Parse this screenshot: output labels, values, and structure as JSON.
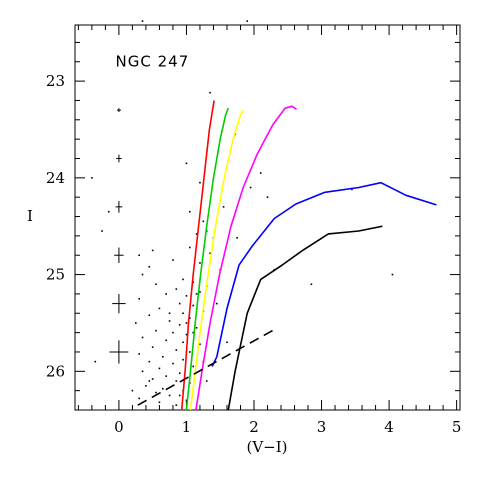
{
  "chart_data": {
    "type": "scatter",
    "title": "",
    "xlabel": "(V−I)",
    "ylabel": "I",
    "xlim": [
      -0.65,
      5.05
    ],
    "ylim": [
      26.4,
      22.42
    ],
    "x_ticks": [
      0,
      1,
      2,
      3,
      4,
      5
    ],
    "y_ticks": [
      23,
      24,
      25,
      26
    ],
    "x_tick_labels": [
      "0",
      "1",
      "2",
      "3",
      "4",
      "5"
    ],
    "y_tick_labels": [
      "23",
      "24",
      "25",
      "26"
    ],
    "annotations": [
      {
        "text": "NGC 247",
        "x": -0.05,
        "y": 22.85
      }
    ],
    "grid": false,
    "colors": {
      "red": "#ff0000",
      "green": "#00cc00",
      "yellow": "#ffff00",
      "magenta": "#ff00ff",
      "blue": "#0000ff",
      "black": "#000000"
    },
    "error_bars": [
      {
        "x": 0,
        "y": 23.3,
        "yerr": 0.02,
        "xerr": 0.03
      },
      {
        "x": 0,
        "y": 23.8,
        "yerr": 0.04,
        "xerr": 0.04
      },
      {
        "x": 0,
        "y": 24.3,
        "yerr": 0.06,
        "xerr": 0.05
      },
      {
        "x": 0,
        "y": 24.8,
        "yerr": 0.08,
        "xerr": 0.07
      },
      {
        "x": 0,
        "y": 25.3,
        "yerr": 0.1,
        "xerr": 0.1
      },
      {
        "x": 0,
        "y": 25.8,
        "yerr": 0.12,
        "xerr": 0.14
      }
    ],
    "series": [
      {
        "color": "#ff0000",
        "style": "solid",
        "x": [
          0.93,
          0.98,
          1.03,
          1.1,
          1.18,
          1.26,
          1.34,
          1.41
        ],
        "y": [
          26.4,
          26.0,
          25.5,
          25.0,
          24.5,
          24.0,
          23.5,
          23.2
        ]
      },
      {
        "color": "#00cc00",
        "style": "solid",
        "x": [
          1.0,
          1.06,
          1.13,
          1.21,
          1.3,
          1.4,
          1.5,
          1.58,
          1.62
        ],
        "y": [
          26.4,
          26.0,
          25.5,
          25.0,
          24.5,
          24.0,
          23.6,
          23.35,
          23.28
        ]
      },
      {
        "color": "#ffff00",
        "style": "solid",
        "x": [
          1.06,
          1.13,
          1.22,
          1.32,
          1.43,
          1.56,
          1.69,
          1.8,
          1.84
        ],
        "y": [
          26.4,
          26.0,
          25.5,
          25.0,
          24.5,
          24.0,
          23.6,
          23.35,
          23.3
        ]
      },
      {
        "color": "#ff00ff",
        "style": "solid",
        "x": [
          1.14,
          1.23,
          1.35,
          1.49,
          1.66,
          1.84,
          2.05,
          2.28,
          2.46,
          2.56,
          2.63
        ],
        "y": [
          26.4,
          26.0,
          25.5,
          25.0,
          24.5,
          24.1,
          23.75,
          23.45,
          23.28,
          23.26,
          23.29
        ]
      },
      {
        "color": "#0000ff",
        "style": "solid",
        "x": [
          1.38,
          1.45,
          1.6,
          1.78,
          1.98,
          2.3,
          2.62,
          3.05,
          3.55,
          3.88,
          4.25,
          4.7
        ],
        "y": [
          25.95,
          25.85,
          25.35,
          24.9,
          24.7,
          24.42,
          24.27,
          24.15,
          24.1,
          24.05,
          24.18,
          24.28
        ]
      },
      {
        "color": "#000000",
        "style": "solid",
        "x": [
          1.62,
          1.72,
          1.9,
          2.1,
          2.42,
          2.72,
          3.1,
          3.55,
          3.9
        ],
        "y": [
          26.4,
          26.0,
          25.4,
          25.05,
          24.9,
          24.75,
          24.58,
          24.55,
          24.5
        ]
      },
      {
        "color": "#000000",
        "style": "dashed",
        "x": [
          0.28,
          2.35
        ],
        "y": [
          26.35,
          25.55
        ]
      }
    ],
    "points": [
      [
        0.35,
        22.38
      ],
      [
        1.9,
        22.38
      ],
      [
        -0.4,
        24.0
      ],
      [
        1.35,
        23.12
      ],
      [
        1.72,
        23.55
      ],
      [
        1.0,
        23.85
      ],
      [
        2.1,
        23.95
      ],
      [
        1.2,
        24.05
      ],
      [
        1.95,
        24.1
      ],
      [
        2.2,
        24.2
      ],
      [
        3.45,
        24.12
      ],
      [
        1.55,
        24.3
      ],
      [
        1.05,
        24.35
      ],
      [
        -0.15,
        24.35
      ],
      [
        1.25,
        24.45
      ],
      [
        -0.25,
        24.55
      ],
      [
        1.15,
        24.58
      ],
      [
        1.4,
        24.62
      ],
      [
        1.75,
        24.62
      ],
      [
        1.05,
        24.72
      ],
      [
        0.5,
        24.75
      ],
      [
        1.35,
        24.78
      ],
      [
        0.3,
        24.8
      ],
      [
        0.8,
        24.85
      ],
      [
        1.2,
        24.88
      ],
      [
        0.45,
        24.92
      ],
      [
        1.5,
        24.95
      ],
      [
        0.35,
        25.0
      ],
      [
        2.3,
        24.95
      ],
      [
        0.95,
        25.05
      ],
      [
        1.1,
        25.08
      ],
      [
        0.55,
        25.1
      ],
      [
        1.3,
        25.12
      ],
      [
        0.85,
        25.15
      ],
      [
        1.2,
        25.18
      ],
      [
        0.7,
        25.2
      ],
      [
        1.0,
        25.22
      ],
      [
        2.85,
        25.1
      ],
      [
        4.05,
        25.0
      ],
      [
        0.3,
        25.25
      ],
      [
        0.9,
        25.3
      ],
      [
        1.1,
        25.32
      ],
      [
        0.6,
        25.35
      ],
      [
        1.25,
        25.38
      ],
      [
        0.95,
        25.4
      ],
      [
        0.45,
        25.42
      ],
      [
        1.05,
        25.45
      ],
      [
        0.75,
        25.48
      ],
      [
        0.25,
        25.5
      ],
      [
        0.9,
        25.52
      ],
      [
        1.15,
        25.55
      ],
      [
        0.55,
        25.58
      ],
      [
        0.8,
        25.6
      ],
      [
        1.0,
        25.62
      ],
      [
        0.35,
        25.65
      ],
      [
        0.7,
        25.68
      ],
      [
        0.95,
        25.7
      ],
      [
        1.2,
        25.72
      ],
      [
        0.5,
        25.75
      ],
      [
        0.85,
        25.78
      ],
      [
        1.05,
        25.8
      ],
      [
        0.3,
        25.82
      ],
      [
        0.65,
        25.85
      ],
      [
        0.95,
        25.88
      ],
      [
        0.45,
        25.9
      ],
      [
        0.8,
        25.92
      ],
      [
        1.1,
        25.95
      ],
      [
        0.6,
        25.97
      ],
      [
        0.35,
        26.0
      ],
      [
        0.9,
        26.02
      ],
      [
        0.7,
        26.05
      ],
      [
        0.5,
        26.08
      ],
      [
        0.85,
        26.1
      ],
      [
        1.05,
        26.12
      ],
      [
        0.4,
        26.15
      ],
      [
        0.65,
        26.18
      ],
      [
        0.95,
        26.2
      ],
      [
        0.55,
        26.22
      ],
      [
        0.75,
        26.25
      ],
      [
        0.3,
        26.28
      ],
      [
        1.0,
        26.3
      ],
      [
        0.6,
        26.32
      ],
      [
        0.85,
        26.35
      ],
      [
        0.45,
        26.1
      ],
      [
        -0.35,
        25.9
      ],
      [
        1.1,
        25.6
      ],
      [
        1.15,
        25.2
      ],
      [
        1.3,
        24.55
      ],
      [
        1.45,
        25.3
      ],
      [
        1.6,
        25.7
      ],
      [
        1.0,
        25.5
      ],
      [
        1.25,
        25.9
      ],
      [
        1.3,
        26.1
      ],
      [
        0.9,
        26.25
      ],
      [
        0.2,
        26.2
      ],
      [
        0.75,
        25.4
      ]
    ]
  }
}
